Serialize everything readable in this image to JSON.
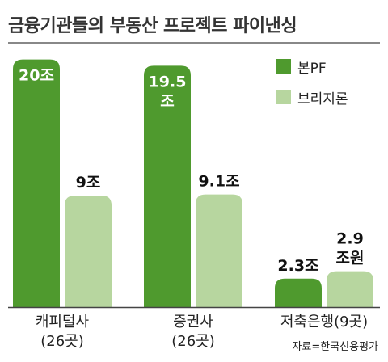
{
  "title": "금융기관들의 부동산 프로젝트 파이낸싱",
  "source": "자료=한국신용평가",
  "colors": {
    "series_pf": "#4f9a2e",
    "series_bridge": "#b7d69f",
    "baseline": "#444444"
  },
  "chart_data": {
    "type": "bar",
    "title": "금융기관들의 부동산 프로젝트 파이낸싱",
    "categories": [
      {
        "line1": "캐피털사",
        "line2": "(26곳)"
      },
      {
        "line1": "증권사",
        "line2": "(26곳)"
      },
      {
        "line1": "저축은행(9곳)",
        "line2": ""
      }
    ],
    "series": [
      {
        "name": "본PF",
        "color": "#4f9a2e",
        "values": [
          20,
          19.5,
          2.3
        ],
        "labels": [
          "20조",
          "19.5\n조",
          "2.3조"
        ]
      },
      {
        "name": "브리지론",
        "color": "#b7d69f",
        "values": [
          9,
          9.1,
          2.9
        ],
        "labels": [
          "9조",
          "9.1조",
          "2.9\n조원"
        ]
      }
    ],
    "unit": "조원",
    "ylim": [
      0,
      20.5
    ],
    "grid": false,
    "legend": "top-right"
  }
}
